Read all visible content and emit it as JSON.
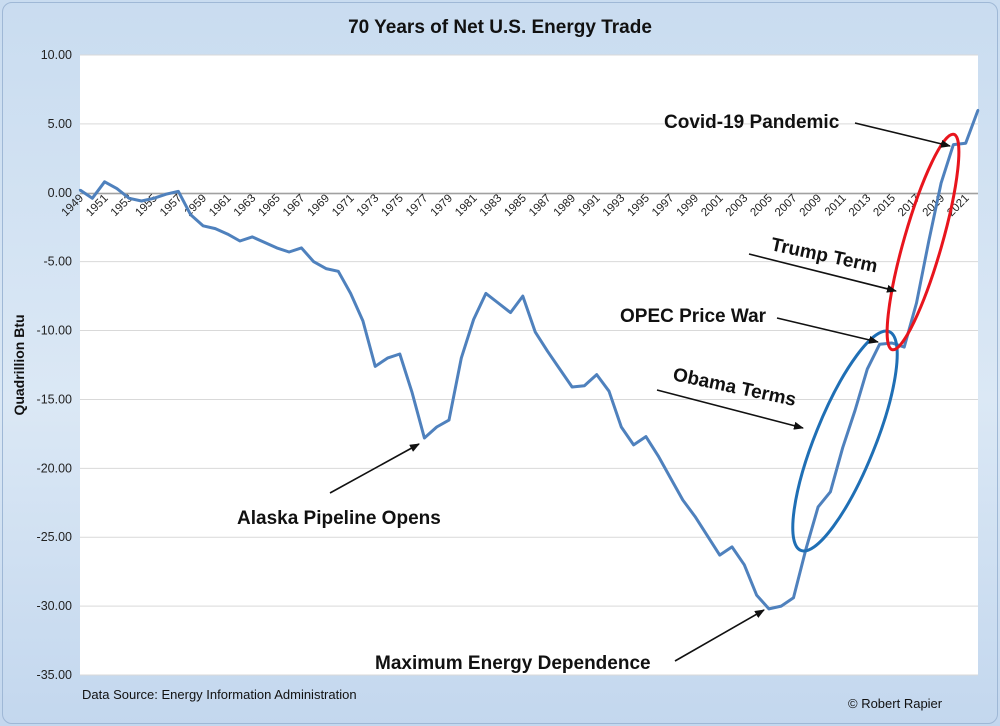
{
  "chart_data": {
    "type": "line",
    "title": "70 Years of Net U.S. Energy Trade",
    "ylabel": "Quadrillion Btu",
    "xlabel": "",
    "ylim": [
      -35,
      10
    ],
    "yticks": [
      "10.00",
      "5.00",
      "0.00",
      "-5.00",
      "-10.00",
      "-15.00",
      "-20.00",
      "-25.00",
      "-30.00",
      "-35.00"
    ],
    "grid": "horizontal",
    "x": [
      1949,
      1950,
      1951,
      1952,
      1953,
      1954,
      1955,
      1956,
      1957,
      1958,
      1959,
      1960,
      1961,
      1962,
      1963,
      1964,
      1965,
      1966,
      1967,
      1968,
      1969,
      1970,
      1971,
      1972,
      1973,
      1974,
      1975,
      1976,
      1977,
      1978,
      1979,
      1980,
      1981,
      1982,
      1983,
      1984,
      1985,
      1986,
      1987,
      1988,
      1989,
      1990,
      1991,
      1992,
      1993,
      1994,
      1995,
      1996,
      1997,
      1998,
      1999,
      2000,
      2001,
      2002,
      2003,
      2004,
      2005,
      2006,
      2007,
      2008,
      2009,
      2010,
      2011,
      2012,
      2013,
      2014,
      2015,
      2016,
      2017,
      2018,
      2019,
      2020,
      2021,
      2022
    ],
    "xtick_labels": [
      "1949",
      "1951",
      "1953",
      "1955",
      "1957",
      "1959",
      "1961",
      "1963",
      "1965",
      "1967",
      "1969",
      "1971",
      "1973",
      "1975",
      "1977",
      "1979",
      "1981",
      "1983",
      "1985",
      "1987",
      "1989",
      "1991",
      "1993",
      "1995",
      "1997",
      "1999",
      "2001",
      "2003",
      "2005",
      "2007",
      "2009",
      "2011",
      "2013",
      "2015",
      "2017",
      "2019",
      "2021"
    ],
    "series": [
      {
        "name": "",
        "values": [
          0.2,
          -0.4,
          0.8,
          0.3,
          -0.4,
          -0.6,
          -0.4,
          -0.1,
          0.1,
          -1.6,
          -2.4,
          -2.6,
          -3.0,
          -3.5,
          -3.2,
          -3.6,
          -4.0,
          -4.3,
          -4.0,
          -5.0,
          -5.5,
          -5.7,
          -7.3,
          -9.3,
          -12.6,
          -12.0,
          -11.7,
          -14.5,
          -17.8,
          -17.0,
          -16.5,
          -12.0,
          -9.2,
          -7.3,
          -8.0,
          -8.7,
          -7.5,
          -10.1,
          -11.5,
          -12.8,
          -14.1,
          -14.0,
          -13.2,
          -14.4,
          -17.0,
          -18.3,
          -17.7,
          -19.1,
          -20.7,
          -22.3,
          -23.5,
          -24.9,
          -26.3,
          -25.7,
          -27.0,
          -29.2,
          -30.2,
          -30.0,
          -29.4,
          -25.9,
          -22.8,
          -21.7,
          -18.5,
          -15.8,
          -12.8,
          -11.0,
          -10.9,
          -11.2,
          -8.0,
          -3.5,
          0.7,
          3.5,
          3.6,
          6.0
        ]
      }
    ],
    "line_color": "#4f81bd",
    "annotations": [
      {
        "text": "Covid-19 Pandemic",
        "year": 2021,
        "value": 3.5
      },
      {
        "text": "Trump Term",
        "year": 2017,
        "value": -7.0
      },
      {
        "text": "OPEC Price War",
        "year": 2015,
        "value": -11.0
      },
      {
        "text": "Obama Terms",
        "year": 2010,
        "value": -17.0
      },
      {
        "text": "Alaska Pipeline Opens",
        "year": 1977,
        "value": -18.0
      },
      {
        "text": "Maximum Energy Dependence",
        "year": 2005,
        "value": -30.0
      }
    ],
    "highlight_colors": {
      "obama": "#1f6fb5",
      "trump": "#e8151d"
    }
  },
  "footer": {
    "source": "Data Source: Energy Information Administration",
    "credit": "© Robert Rapier"
  }
}
